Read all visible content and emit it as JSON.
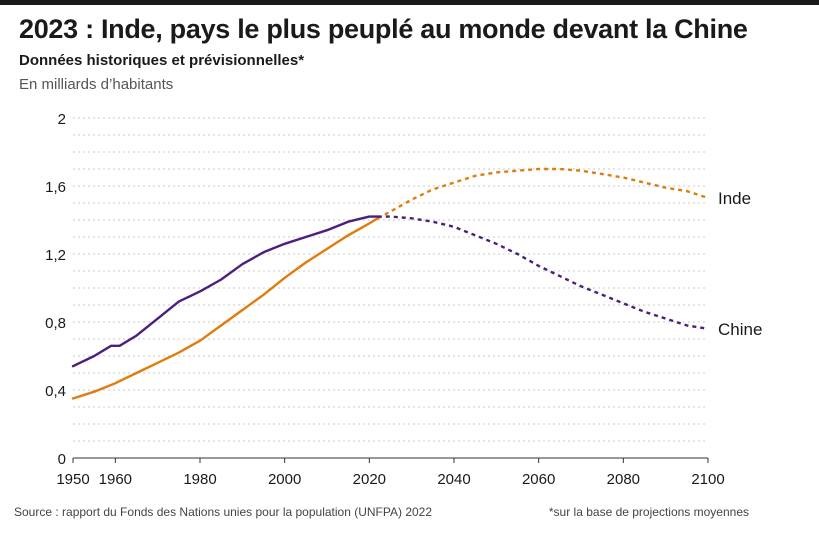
{
  "header": {
    "title": "2023 : Inde, pays le plus peuplé au monde devant la Chine",
    "subtitle": "Données historiques et prévisionnelles*",
    "unit": "En milliards d’habitants"
  },
  "footer": {
    "source": "Source : rapport du Fonds des Nations unies pour la population (UNFPA) 2022",
    "note": "*sur la base de projections moyennes"
  },
  "colors": {
    "inde": "#e07c0e",
    "chine": "#4b1f7e",
    "grid": "#c8c8c8",
    "text": "#1a1a1a"
  },
  "chart_data": {
    "type": "line",
    "title": "2023 : Inde, pays le plus peuplé au monde devant la Chine",
    "subtitle": "Données historiques et prévisionnelles*",
    "ylabel": "En milliards d’habitants",
    "xlim": [
      1950,
      2100
    ],
    "ylim": [
      0,
      2
    ],
    "x_ticks": [
      1950,
      1960,
      1980,
      2000,
      2020,
      2040,
      2060,
      2080,
      2100
    ],
    "y_ticks": [
      0,
      0.4,
      0.8,
      1.2,
      1.6,
      2
    ],
    "y_tick_labels": [
      "0",
      "0,4",
      "0,8",
      "1,2",
      "1,6",
      "2"
    ],
    "grid": true,
    "projection_start": 2022,
    "series": [
      {
        "name": "Inde",
        "color": "#e07c0e",
        "x": [
          1950,
          1955,
          1960,
          1965,
          1970,
          1975,
          1980,
          1985,
          1990,
          1995,
          2000,
          2005,
          2010,
          2015,
          2020,
          2022,
          2025,
          2030,
          2035,
          2040,
          2045,
          2050,
          2055,
          2060,
          2065,
          2070,
          2075,
          2080,
          2085,
          2090,
          2095,
          2100
        ],
        "y": [
          0.35,
          0.39,
          0.44,
          0.5,
          0.56,
          0.62,
          0.69,
          0.78,
          0.87,
          0.96,
          1.06,
          1.15,
          1.23,
          1.31,
          1.38,
          1.41,
          1.45,
          1.52,
          1.58,
          1.62,
          1.66,
          1.68,
          1.69,
          1.7,
          1.7,
          1.69,
          1.67,
          1.65,
          1.62,
          1.59,
          1.57,
          1.53
        ]
      },
      {
        "name": "Chine",
        "color": "#4b1f7e",
        "x": [
          1950,
          1955,
          1959,
          1961,
          1965,
          1970,
          1975,
          1980,
          1985,
          1990,
          1995,
          2000,
          2005,
          2010,
          2015,
          2020,
          2022,
          2025,
          2030,
          2035,
          2040,
          2045,
          2050,
          2055,
          2060,
          2065,
          2070,
          2075,
          2080,
          2085,
          2090,
          2095,
          2100
        ],
        "y": [
          0.54,
          0.6,
          0.66,
          0.66,
          0.72,
          0.82,
          0.92,
          0.98,
          1.05,
          1.14,
          1.21,
          1.26,
          1.3,
          1.34,
          1.39,
          1.42,
          1.42,
          1.42,
          1.41,
          1.39,
          1.36,
          1.31,
          1.26,
          1.2,
          1.13,
          1.07,
          1.01,
          0.96,
          0.91,
          0.86,
          0.82,
          0.78,
          0.76
        ]
      }
    ]
  }
}
